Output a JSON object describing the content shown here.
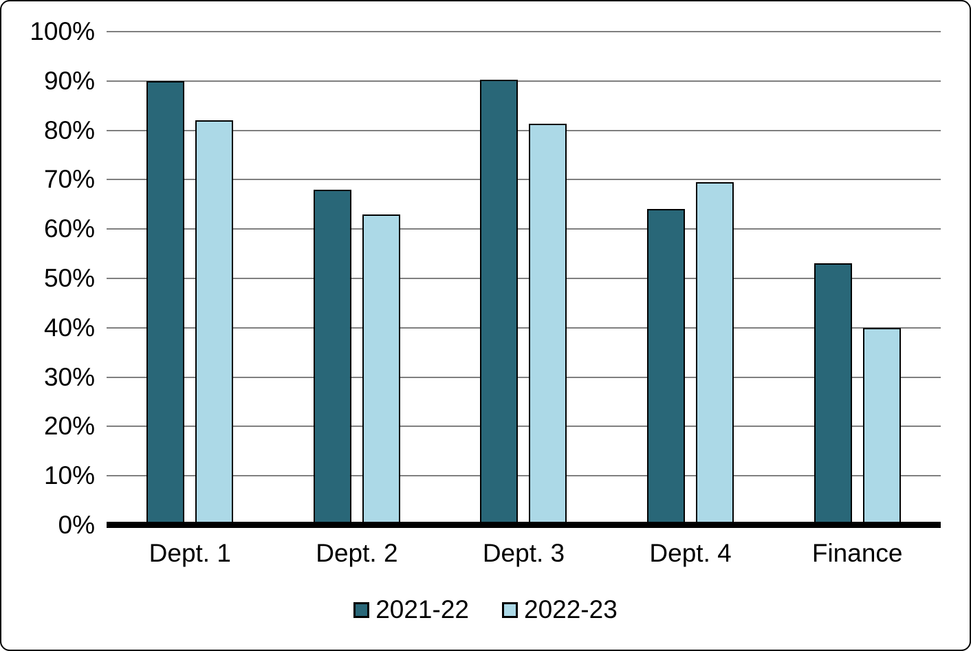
{
  "chart_data": {
    "type": "bar",
    "title": "",
    "xlabel": "",
    "ylabel": "",
    "categories": [
      "Dept. 1",
      "Dept. 2",
      "Dept. 3",
      "Dept. 4",
      "Finance"
    ],
    "series": [
      {
        "name": "2021-22",
        "color": "#296778",
        "values": [
          90,
          68,
          90.2,
          64,
          53
        ]
      },
      {
        "name": "2022-23",
        "color": "#ACD9E7",
        "values": [
          82,
          63,
          81.3,
          69.5,
          40
        ]
      }
    ],
    "ylim": [
      0,
      100
    ],
    "y_tick_step": 10,
    "y_tick_suffix": "%",
    "grid": "horizontal",
    "gridline_color": "#7f7f7f",
    "axis_line_color": "#000000",
    "bar_border_color": "#000000",
    "legend_position": "bottom"
  }
}
